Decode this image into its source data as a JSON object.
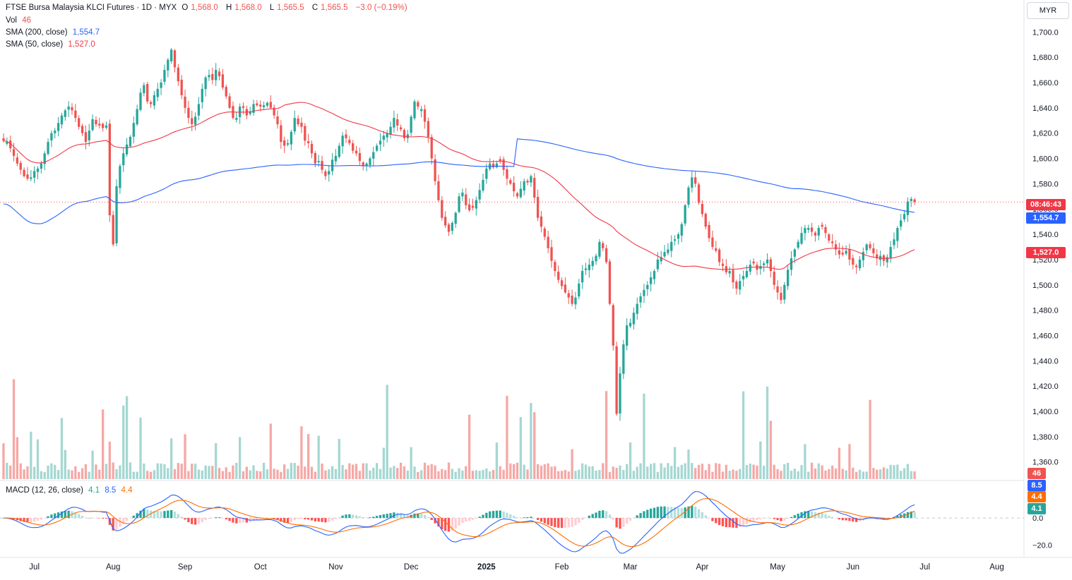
{
  "legend": {
    "title": "FTSE Bursa Malaysia KLCI Futures · 1D · MYX",
    "open_label": "O",
    "open": "1,568.0",
    "high_label": "H",
    "high": "1,568.0",
    "low_label": "L",
    "low": "1,565.5",
    "close_label": "C",
    "close": "1,565.5",
    "change": "−3.0 (−0.19%)",
    "vol_label": "Vol",
    "vol": "46",
    "sma200_label": "SMA (200, close)",
    "sma200": "1,554.7",
    "sma50_label": "SMA (50, close)",
    "sma50": "1,527.0",
    "macd_label": "MACD (12, 26, close)",
    "macd_hist": "4.1",
    "macd_line": "8.5",
    "macd_signal": "4.4"
  },
  "currency": "MYR",
  "price_tags": {
    "countdown": "08:46:43",
    "sma200": "1,554.7",
    "sma50": "1,527.0",
    "volume": "46",
    "macd_line": "8.5",
    "macd_signal": "4.4",
    "macd_hist": "4.1"
  },
  "colors": {
    "up": "#26a69a",
    "down": "#ef5350",
    "up_vol": "#a5d7d2",
    "down_vol": "#f5a8a6",
    "sma200": "#2962ff",
    "sma50": "#f23645",
    "macd_line": "#2962ff",
    "macd_signal": "#ff6d00",
    "tag_sma200": "#2962ff",
    "tag_sma50": "#f23645",
    "tag_countdown": "#f23645"
  },
  "chart_data": {
    "type": "candlestick",
    "y_axis_ticks": [
      "1,360.0",
      "1,380.0",
      "1,400.0",
      "1,420.0",
      "1,440.0",
      "1,460.0",
      "1,480.0",
      "1,500.0",
      "1,520.0",
      "1,540.0",
      "1,560.0",
      "1,580.0",
      "1,600.0",
      "1,620.0",
      "1,640.0",
      "1,660.0",
      "1,680.0",
      "1,700.0"
    ],
    "y_axis_values": [
      1360,
      1380,
      1400,
      1420,
      1440,
      1460,
      1480,
      1500,
      1520,
      1540,
      1560,
      1580,
      1600,
      1620,
      1640,
      1660,
      1680,
      1700
    ],
    "ylim": [
      1347,
      1718
    ],
    "macd_ticks": [
      "0.0",
      "−20.0"
    ],
    "macd_tick_values": [
      0,
      -20
    ],
    "macd_ylim": [
      -29,
      26
    ],
    "x_axis_labels": [
      "Jul",
      "Aug",
      "Sep",
      "Oct",
      "Nov",
      "Dec",
      "2025",
      "Feb",
      "Mar",
      "Apr",
      "May",
      "Jun",
      "Jul",
      "Aug"
    ],
    "x_axis_label_index": [
      9,
      32,
      53,
      75,
      97,
      119,
      141,
      163,
      183,
      204,
      226,
      248,
      269,
      290
    ],
    "last_close": 1565.5,
    "closes": [
      1614,
      1613,
      1608,
      1602,
      1596,
      1591,
      1586,
      1584,
      1585,
      1590,
      1592,
      1596,
      1604,
      1613,
      1620,
      1622,
      1628,
      1634,
      1638,
      1641,
      1638,
      1632,
      1625,
      1620,
      1613,
      1622,
      1631,
      1627,
      1626,
      1624,
      1626,
      1555,
      1532,
      1578,
      1594,
      1604,
      1611,
      1617,
      1628,
      1639,
      1652,
      1658,
      1645,
      1643,
      1650,
      1655,
      1660,
      1670,
      1678,
      1686,
      1672,
      1661,
      1650,
      1640,
      1632,
      1627,
      1633,
      1643,
      1655,
      1664,
      1666,
      1662,
      1670,
      1665,
      1656,
      1649,
      1640,
      1632,
      1632,
      1641,
      1640,
      1634,
      1637,
      1643,
      1642,
      1641,
      1642,
      1644,
      1640,
      1634,
      1627,
      1613,
      1610,
      1612,
      1621,
      1632,
      1627,
      1625,
      1614,
      1612,
      1604,
      1596,
      1598,
      1591,
      1586,
      1590,
      1599,
      1602,
      1610,
      1618,
      1616,
      1612,
      1606,
      1604,
      1598,
      1594,
      1596,
      1600,
      1605,
      1610,
      1614,
      1618,
      1620,
      1625,
      1632,
      1626,
      1623,
      1616,
      1619,
      1633,
      1645,
      1641,
      1639,
      1629,
      1617,
      1600,
      1582,
      1567,
      1553,
      1547,
      1542,
      1549,
      1557,
      1570,
      1573,
      1563,
      1559,
      1561,
      1567,
      1575,
      1583,
      1592,
      1596,
      1593,
      1596,
      1598,
      1591,
      1584,
      1580,
      1574,
      1570,
      1576,
      1582,
      1581,
      1586,
      1569,
      1553,
      1546,
      1538,
      1529,
      1519,
      1511,
      1504,
      1499,
      1494,
      1490,
      1485,
      1490,
      1501,
      1511,
      1513,
      1516,
      1519,
      1523,
      1534,
      1529,
      1518,
      1485,
      1452,
      1398,
      1430,
      1453,
      1468,
      1470,
      1478,
      1485,
      1491,
      1496,
      1500,
      1506,
      1511,
      1520,
      1522,
      1526,
      1528,
      1534,
      1536,
      1540,
      1548,
      1563,
      1577,
      1585,
      1580,
      1565,
      1556,
      1546,
      1537,
      1530,
      1527,
      1518,
      1515,
      1510,
      1511,
      1502,
      1497,
      1503,
      1507,
      1511,
      1516,
      1517,
      1512,
      1515,
      1517,
      1520,
      1511,
      1500,
      1494,
      1488,
      1500,
      1512,
      1521,
      1528,
      1534,
      1541,
      1545,
      1545,
      1542,
      1539,
      1545,
      1546,
      1541,
      1535,
      1533,
      1528,
      1524,
      1524,
      1527,
      1520,
      1516,
      1514,
      1520,
      1526,
      1532,
      1529,
      1525,
      1521,
      1523,
      1519,
      1522,
      1530,
      1536,
      1545,
      1551,
      1556,
      1566,
      1568,
      1565.5
    ]
  }
}
